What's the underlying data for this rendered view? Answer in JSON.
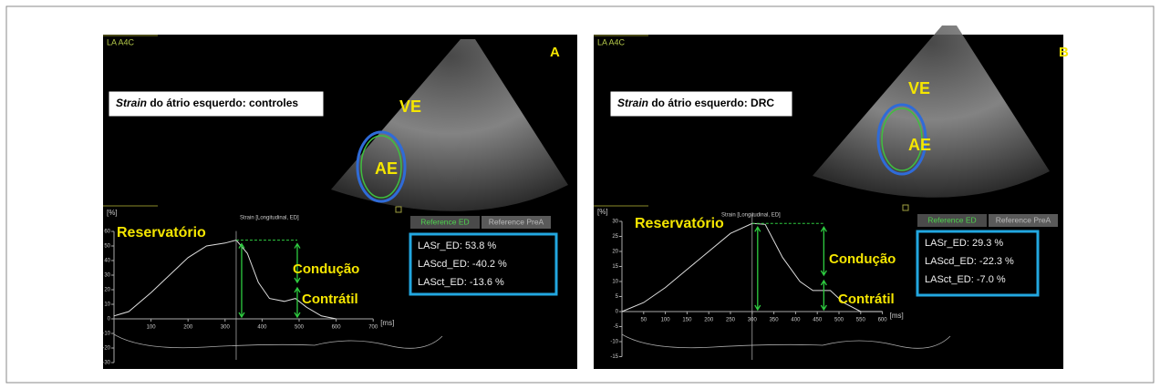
{
  "panels": [
    {
      "view": "LA A4C",
      "letter": "A",
      "caption": {
        "italic": "Strain",
        "rest": " do átrio esquerdo: controles"
      },
      "labels": {
        "lv": "VE",
        "la": "AE"
      },
      "chart": {
        "title": "Strain [Longitudinal, ED]",
        "y_unit": "[%]",
        "x_unit": "[ms]",
        "yticks": [
          60,
          50,
          40,
          30,
          20,
          10,
          0,
          -10,
          -20,
          -30
        ],
        "xticks": [
          100,
          200,
          300,
          400,
          500,
          600,
          700
        ],
        "curve": {
          "x": [
            0,
            40,
            100,
            150,
            200,
            250,
            300,
            330,
            360,
            390,
            420,
            460,
            490,
            520,
            560,
            600
          ],
          "y": [
            2,
            5,
            18,
            30,
            42,
            50,
            52,
            54,
            45,
            25,
            14,
            12,
            14,
            8,
            2,
            0
          ]
        }
      },
      "phases": [
        "Reservatório",
        "Condução",
        "Contrátil"
      ],
      "buttons": [
        "Reference ED",
        "Reference PreA"
      ],
      "measures": [
        "LASr_ED: 53.8 %",
        "LAScd_ED: -40.2 %",
        "LASct_ED: -13.6 %"
      ]
    },
    {
      "view": "LA A4C",
      "letter": "B",
      "caption": {
        "italic": "Strain",
        "rest": " do átrio esquerdo: DRC"
      },
      "labels": {
        "lv": "VE",
        "la": "AE"
      },
      "chart": {
        "title": "Strain [Longitudinal, ED]",
        "y_unit": "[%]",
        "x_unit": "[ms]",
        "yticks": [
          30,
          25,
          20,
          15,
          10,
          5,
          0,
          -5,
          -10,
          -15
        ],
        "xticks": [
          50,
          100,
          150,
          200,
          250,
          300,
          350,
          400,
          450,
          500,
          550,
          600
        ],
        "curve": {
          "x": [
            0,
            50,
            100,
            150,
            200,
            250,
            300,
            330,
            370,
            410,
            440,
            480,
            510,
            550,
            600
          ],
          "y": [
            0,
            3,
            8,
            14,
            20,
            26,
            29.3,
            29,
            18,
            10,
            7,
            7,
            3,
            0,
            0
          ]
        }
      },
      "phases": [
        "Reservatório",
        "Condução",
        "Contrátil"
      ],
      "buttons": [
        "Reference ED",
        "Reference PreA"
      ],
      "measures": [
        "LASr_ED: 29.3 %",
        "LAScd_ED: -22.3 %",
        "LASct_ED: -7.0 %"
      ]
    }
  ]
}
